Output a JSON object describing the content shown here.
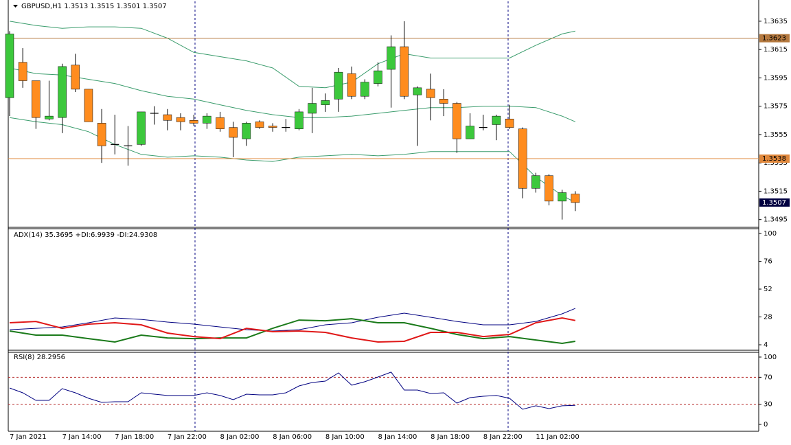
{
  "chart_data": [
    {
      "type": "candlestick",
      "title": "GBPUSD,H1  1.3513 1.3515 1.3501 1.3507",
      "categories": [
        "7 Jan 2021",
        null,
        null,
        null,
        "7 Jan 14:00",
        null,
        null,
        null,
        "7 Jan 18:00",
        null,
        null,
        null,
        "7 Jan 22:00",
        null,
        null,
        null,
        "8 Jan 02:00",
        null,
        null,
        null,
        "8 Jan 06:00",
        null,
        null,
        null,
        "8 Jan 10:00",
        null,
        null,
        null,
        "8 Jan 14:00",
        null,
        null,
        null,
        "8 Jan 18:00",
        null,
        null,
        null,
        "8 Jan 22:00",
        null,
        null,
        null,
        "11 Jan 02:00",
        null,
        null,
        null
      ],
      "open": [
        1.3581,
        1.3606,
        1.3593,
        1.3566,
        1.3567,
        1.3604,
        1.3587,
        1.3563,
        1.3548,
        1.3547,
        1.3548,
        1.357,
        1.3569,
        1.3567,
        1.3565,
        1.3563,
        1.3567,
        1.356,
        1.3552,
        1.3564,
        1.3561,
        1.356,
        1.3559,
        1.357,
        1.3576,
        1.358,
        1.3598,
        1.3582,
        1.3591,
        1.3601,
        1.3617,
        1.3583,
        1.3587,
        1.358,
        1.3577,
        1.3552,
        1.356,
        1.3562,
        1.3566,
        1.3559,
        1.3517,
        1.3526,
        1.3508,
        1.3513
      ],
      "high": [
        1.3628,
        1.3616,
        1.3593,
        1.3593,
        1.3605,
        1.3612,
        1.3587,
        1.3573,
        1.3569,
        1.3561,
        1.3571,
        1.3575,
        1.3573,
        1.357,
        1.3569,
        1.357,
        1.3571,
        1.3564,
        1.3564,
        1.3565,
        1.3563,
        1.3566,
        1.3573,
        1.3588,
        1.3584,
        1.3602,
        1.3603,
        1.3594,
        1.3606,
        1.3625,
        1.3635,
        1.3589,
        1.3598,
        1.3587,
        1.3578,
        1.357,
        1.3569,
        1.3569,
        1.3576,
        1.356,
        1.3528,
        1.3527,
        1.3516,
        1.3515
      ],
      "low": [
        1.3568,
        1.3588,
        1.3559,
        1.3565,
        1.3556,
        1.3585,
        1.3564,
        1.3535,
        1.3541,
        1.3533,
        1.3547,
        1.3562,
        1.3558,
        1.3558,
        1.3561,
        1.3559,
        1.3557,
        1.3539,
        1.3547,
        1.3559,
        1.3557,
        1.3557,
        1.3558,
        1.3556,
        1.3571,
        1.3571,
        1.358,
        1.358,
        1.3589,
        1.3574,
        1.358,
        1.3547,
        1.3565,
        1.3568,
        1.3542,
        1.3552,
        1.3558,
        1.3551,
        1.3559,
        1.351,
        1.3514,
        1.3505,
        1.3495,
        1.3501
      ],
      "close": [
        1.3626,
        1.3593,
        1.3567,
        1.3568,
        1.3603,
        1.3587,
        1.3564,
        1.3547,
        1.3548,
        1.3547,
        1.3571,
        1.357,
        1.3565,
        1.3564,
        1.3563,
        1.3568,
        1.3559,
        1.3553,
        1.3563,
        1.356,
        1.356,
        1.356,
        1.3571,
        1.3577,
        1.3579,
        1.3599,
        1.3582,
        1.3592,
        1.36,
        1.3617,
        1.3582,
        1.3588,
        1.3581,
        1.3577,
        1.3552,
        1.3561,
        1.356,
        1.3568,
        1.356,
        1.3517,
        1.3526,
        1.3508,
        1.3514,
        1.3507
      ],
      "up_color": "#3cc83c",
      "down_color": "#ff8c1e",
      "doji_color": "#000000",
      "bands_x": [
        0,
        2,
        4,
        6,
        8,
        10,
        12,
        14,
        16,
        18,
        20,
        22,
        24,
        26,
        28,
        30,
        32,
        34,
        36,
        38,
        40,
        42,
        43
      ],
      "bands": [
        [
          1.3635,
          1.3632,
          1.363,
          1.3631,
          1.3631,
          1.363,
          1.3623,
          1.3613,
          1.361,
          1.3607,
          1.3602,
          1.3589,
          1.3588,
          1.3592,
          1.3605,
          1.3612,
          1.3609,
          1.3609,
          1.3609,
          1.3609,
          1.3618,
          1.3626,
          1.3628
        ],
        [
          1.3602,
          1.3598,
          1.3597,
          1.3594,
          1.3591,
          1.3586,
          1.3582,
          1.358,
          1.3576,
          1.3572,
          1.3569,
          1.3567,
          1.3567,
          1.3568,
          1.357,
          1.3572,
          1.3574,
          1.3574,
          1.3575,
          1.3575,
          1.3574,
          1.3568,
          1.3564
        ],
        [
          1.3567,
          1.3564,
          1.3562,
          1.3557,
          1.3548,
          1.3541,
          1.3539,
          1.354,
          1.3539,
          1.3537,
          1.3536,
          1.3539,
          1.354,
          1.3541,
          1.354,
          1.3541,
          1.3543,
          1.3543,
          1.3543,
          1.3543,
          1.3525,
          1.3512,
          1.3507
        ]
      ],
      "band_color": "#3a9c6c",
      "levels": [
        {
          "value": 1.3623,
          "color": "#b5793f"
        },
        {
          "value": 1.3538,
          "color": "#e0883c"
        }
      ],
      "ylim": [
        1.349,
        1.3649
      ],
      "yticks": [
        1.3635,
        1.3615,
        1.3595,
        1.3575,
        1.3555,
        1.3535,
        1.3515,
        1.3495
      ]
    },
    {
      "type": "line",
      "title": "ADX(14) 35.3695 +DI:6.9939 -DI:24.9308",
      "x": [
        0,
        2,
        4,
        6,
        8,
        10,
        12,
        14,
        16,
        18,
        20,
        22,
        24,
        26,
        28,
        30,
        32,
        34,
        36,
        38,
        40,
        42,
        43
      ],
      "series": [
        {
          "color": "#000080",
          "values": [
            17.0,
            18.2,
            19.4,
            23.0,
            27.1,
            25.9,
            23.6,
            21.8,
            19.4,
            17.0,
            15.9,
            17.0,
            21.2,
            23.0,
            27.7,
            31.3,
            27.7,
            24.1,
            21.2,
            21.2,
            24.1,
            30.7,
            35.3695
          ]
        },
        {
          "color": "#1a7a1a",
          "values": [
            15.9,
            12.3,
            12.3,
            9.3,
            6.4,
            12.3,
            9.9,
            9.3,
            9.9,
            9.9,
            18.2,
            25.3,
            24.7,
            26.5,
            23.0,
            23.0,
            18.2,
            12.9,
            9.3,
            11.1,
            8.1,
            5.2,
            6.9939
          ]
        },
        {
          "color": "#e01818",
          "values": [
            23.0,
            24.1,
            18.2,
            21.8,
            23.0,
            21.2,
            14.1,
            11.1,
            9.3,
            18.2,
            15.3,
            15.9,
            14.7,
            9.9,
            6.4,
            7.0,
            14.7,
            14.7,
            11.1,
            12.9,
            23.0,
            27.1,
            24.9308
          ]
        }
      ],
      "ylim": [
        -0.7,
        104.1
      ],
      "yticks": [
        100,
        76,
        52,
        28,
        4
      ]
    },
    {
      "type": "line",
      "title": "RSI(8) 28.2956",
      "color": "#000080",
      "values": [
        54.1,
        46.9,
        35.7,
        35.7,
        53.1,
        46.9,
        38.8,
        32.7,
        33.7,
        33.7,
        46.9,
        44.9,
        42.9,
        42.9,
        42.9,
        46.9,
        42.9,
        36.7,
        44.9,
        43.9,
        43.9,
        46.9,
        57.1,
        62.2,
        64.3,
        76.5,
        58.2,
        63.3,
        70.4,
        77.6,
        51.0,
        51.0,
        45.9,
        46.9,
        31.6,
        39.8,
        41.8,
        42.9,
        38.8,
        22.4,
        27.6,
        23.5,
        27.6,
        28.2956
      ],
      "levels": [
        70,
        30
      ],
      "level_color": "#b22222",
      "ylim": [
        -10.2,
        107.1
      ],
      "yticks": [
        100,
        70,
        30,
        0
      ]
    }
  ]
}
